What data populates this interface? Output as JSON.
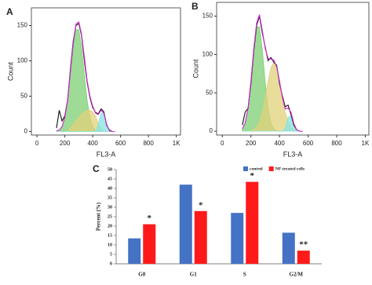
{
  "chart_data": [
    {
      "type": "histogram",
      "panel_label": "A",
      "x_label": "FL3-A",
      "y_label": "Count",
      "xlim": [
        -40,
        1030
      ],
      "ylim": [
        -5,
        175
      ],
      "xticks": [
        0,
        200,
        400,
        600,
        800,
        {
          "value": 1000,
          "label": "1K"
        }
      ],
      "yticks": [
        0,
        50,
        100,
        150
      ],
      "x": [
        140,
        160,
        180,
        200,
        220,
        240,
        260,
        280,
        300,
        320,
        340,
        360,
        380,
        400,
        420,
        440,
        460,
        480,
        500,
        520,
        540,
        560
      ],
      "series": [
        {
          "style": "area",
          "color": "#7ccf73",
          "values": [
            1,
            2,
            7,
            20,
            44,
            80,
            119,
            144,
            144,
            119,
            80,
            44,
            20,
            7,
            2,
            1,
            0,
            0,
            0,
            0,
            0,
            0
          ]
        },
        {
          "style": "area",
          "color": "#e2d27a",
          "values": [
            0,
            0,
            0,
            0,
            0,
            5,
            10,
            15,
            20,
            25,
            28,
            30,
            30,
            28,
            22,
            12,
            5,
            1,
            0,
            0,
            0,
            0
          ]
        },
        {
          "style": "area",
          "color": "#86e3e3",
          "values": [
            0,
            0,
            0,
            0,
            0,
            0,
            0,
            0,
            0,
            0,
            0,
            0,
            0,
            0,
            1,
            10,
            26,
            26,
            10,
            1,
            0,
            0
          ]
        },
        {
          "style": "line",
          "color": "#111111",
          "values": [
            5,
            30,
            15,
            22,
            45,
            88,
            128,
            150,
            153,
            136,
            100,
            70,
            48,
            34,
            27,
            25,
            32,
            28,
            9,
            2,
            0,
            0
          ]
        },
        {
          "style": "line",
          "color": "#d02ad0",
          "values": [
            1,
            2,
            7,
            20,
            44,
            85,
            125,
            152,
            155,
            138,
            105,
            72,
            50,
            36,
            26,
            24,
            30,
            26,
            10,
            1,
            0,
            0
          ]
        }
      ]
    },
    {
      "type": "histogram",
      "panel_label": "B",
      "x_label": "FL3-A",
      "y_label": "Count",
      "xlim": [
        -40,
        1025
      ],
      "ylim": [
        -5,
        168
      ],
      "xticks": [
        0,
        200,
        400,
        600,
        800,
        {
          "value": 1000,
          "label": "1K"
        }
      ],
      "yticks": [
        0,
        50,
        100,
        150
      ],
      "x": [
        140,
        160,
        180,
        200,
        220,
        240,
        260,
        280,
        300,
        320,
        340,
        360,
        380,
        400,
        420,
        440,
        460,
        480,
        500,
        520,
        540,
        560
      ],
      "series": [
        {
          "style": "area",
          "color": "#7ccf73",
          "values": [
            3,
            11,
            30,
            64,
            106,
            136,
            136,
            106,
            64,
            30,
            11,
            3,
            1,
            0,
            0,
            0,
            0,
            0,
            0,
            0,
            0,
            0
          ]
        },
        {
          "style": "area",
          "color": "#e2d27a",
          "values": [
            0,
            0,
            0,
            1,
            2,
            5,
            12,
            25,
            44,
            65,
            83,
            90,
            83,
            65,
            44,
            25,
            12,
            5,
            2,
            1,
            0,
            0
          ]
        },
        {
          "style": "area",
          "color": "#86e3e3",
          "values": [
            0,
            0,
            0,
            0,
            0,
            0,
            0,
            0,
            0,
            0,
            0,
            0,
            0,
            0,
            0,
            4,
            18,
            20,
            8,
            1,
            0,
            0
          ]
        },
        {
          "style": "line",
          "color": "#111111",
          "values": [
            8,
            25,
            30,
            62,
            105,
            138,
            150,
            128,
            110,
            92,
            96,
            90,
            86,
            62,
            46,
            32,
            34,
            22,
            8,
            2,
            0,
            0
          ]
        },
        {
          "style": "line",
          "color": "#d02ad0",
          "values": [
            3,
            11,
            30,
            65,
            108,
            141,
            152,
            131,
            108,
            95,
            94,
            93,
            84,
            65,
            44,
            29,
            30,
            25,
            10,
            2,
            0,
            0
          ]
        }
      ]
    },
    {
      "type": "bar",
      "panel_label": "C",
      "y_label": "Percent (%)",
      "categories": [
        "G0",
        "G1",
        "S",
        "G2/M"
      ],
      "ylim": [
        0,
        50
      ],
      "yticks": [
        0,
        5,
        10,
        15,
        20,
        25,
        30,
        35,
        40,
        45,
        50
      ],
      "series": [
        {
          "name": "control",
          "color": "#4472c4",
          "values": [
            13.5,
            42,
            27,
            16.5
          ]
        },
        {
          "name": "NP-treated cells",
          "color": "#ff1a1a",
          "values": [
            21,
            28,
            43.5,
            7
          ],
          "annotations": [
            "*",
            "*",
            "*",
            "**"
          ]
        }
      ]
    }
  ]
}
